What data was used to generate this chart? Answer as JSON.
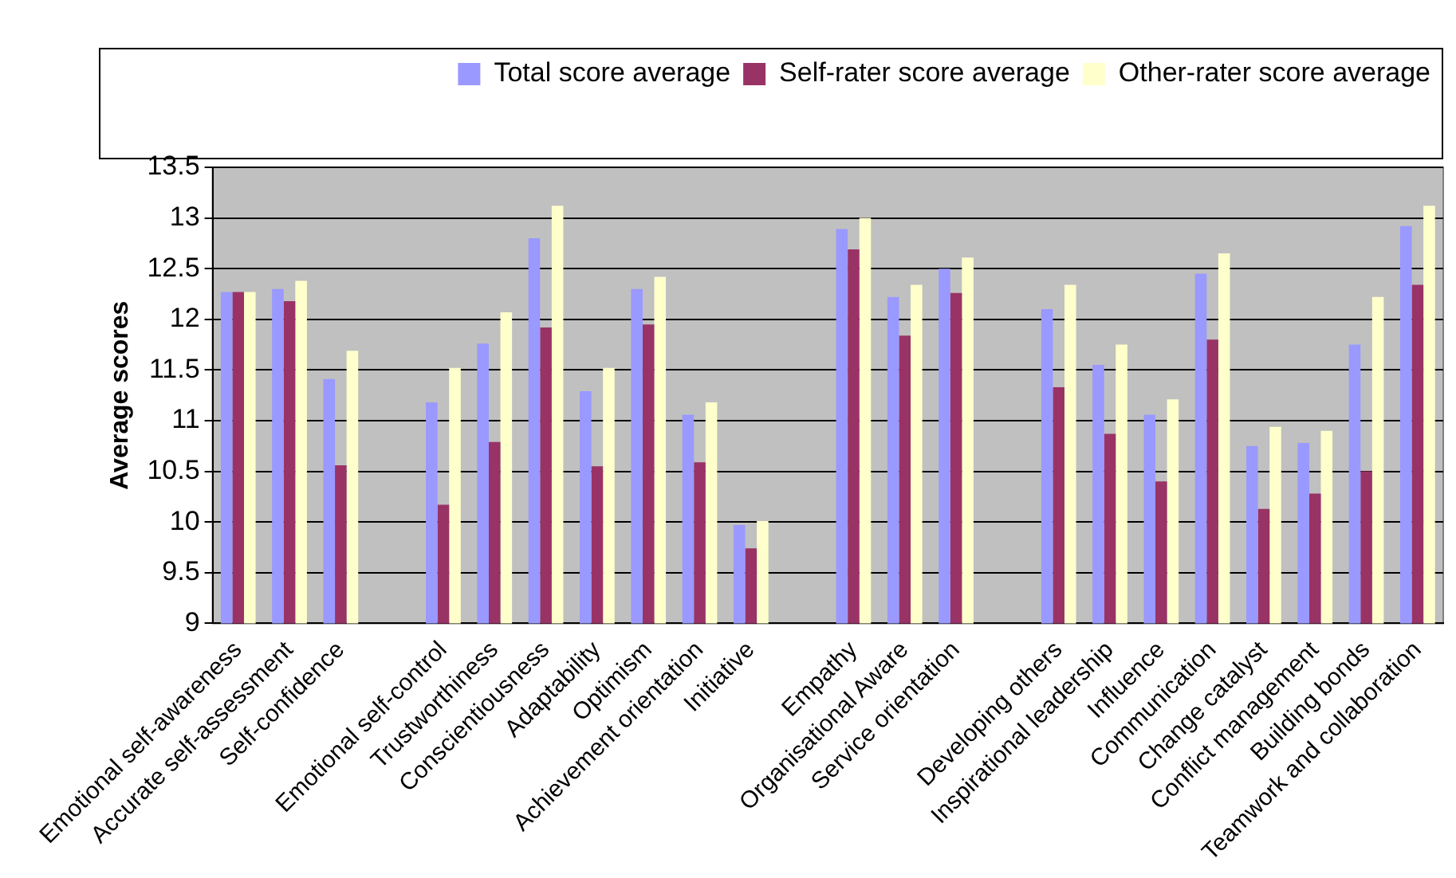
{
  "chart_data": {
    "type": "bar",
    "ylabel": "Average scores",
    "categories": [
      "Emotional self-awareness",
      "Accurate self-assessment",
      "Self-confidence",
      null,
      "Emotional self-control",
      "Trustworthiness",
      "Conscientiousness",
      "Adaptability",
      "Optimism",
      "Achievement orientation",
      "Initiative",
      null,
      "Empathy",
      "Organisational Aware",
      "Service orientation",
      null,
      "Developing others",
      "Inspirational leadership",
      "Influence",
      "Communication",
      "Change catalyst",
      "Conflict management",
      "Building bonds",
      "Teamwork and collaboration"
    ],
    "series": [
      {
        "name": "Total score average",
        "color": "#9999ff",
        "values": [
          12.27,
          12.3,
          11.41,
          null,
          11.18,
          11.76,
          12.8,
          11.29,
          12.3,
          11.06,
          9.97,
          null,
          12.89,
          12.22,
          12.5,
          null,
          12.1,
          11.55,
          11.06,
          12.45,
          10.75,
          10.78,
          11.75,
          12.92
        ]
      },
      {
        "name": "Self-rater score average",
        "color": "#993366",
        "values": [
          12.27,
          12.18,
          10.56,
          null,
          10.17,
          10.79,
          11.92,
          10.55,
          11.95,
          10.59,
          9.74,
          null,
          12.69,
          11.84,
          12.26,
          null,
          11.33,
          10.87,
          10.4,
          11.8,
          10.13,
          10.28,
          10.5,
          12.34
        ]
      },
      {
        "name": "Other-rater score average",
        "color": "#ffffcc",
        "values": [
          12.27,
          12.38,
          11.69,
          null,
          11.52,
          12.07,
          13.12,
          11.52,
          12.42,
          11.18,
          10.01,
          null,
          13.0,
          12.34,
          12.61,
          null,
          12.34,
          11.75,
          11.21,
          12.65,
          10.94,
          10.9,
          12.22,
          13.12
        ]
      }
    ],
    "ylim": [
      9,
      13.5
    ],
    "yticks": [
      9,
      9.5,
      10,
      10.5,
      11,
      11.5,
      12,
      12.5,
      13,
      13.5
    ],
    "grid": "y",
    "legend": "top"
  }
}
